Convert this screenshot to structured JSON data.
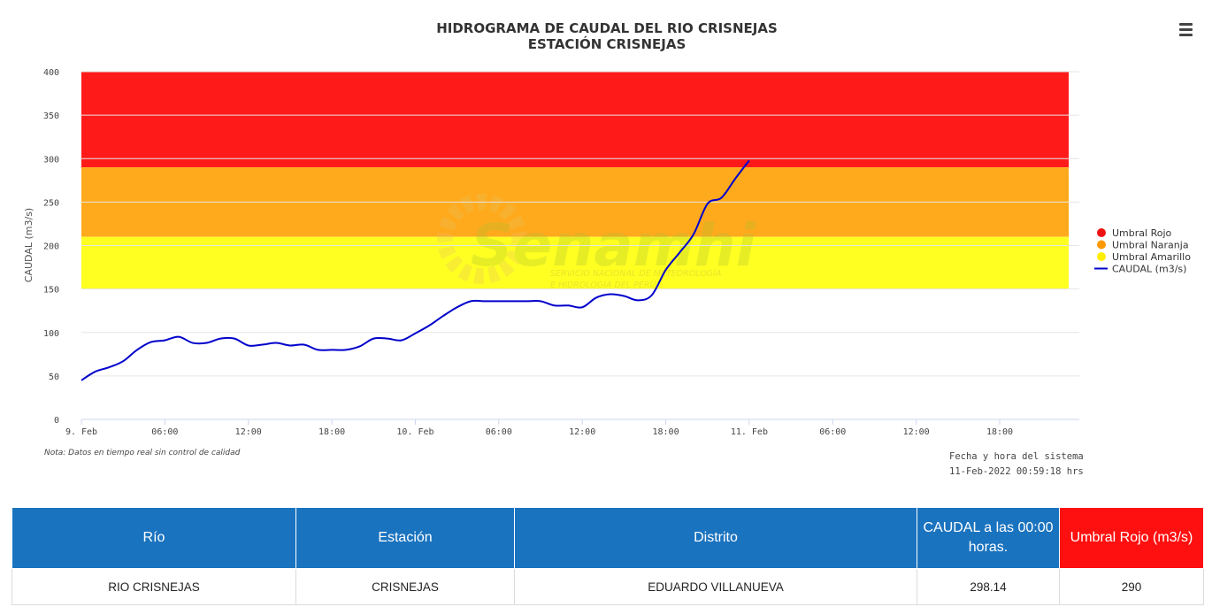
{
  "chart_data": {
    "type": "line",
    "title": "HIDROGRAMA DE CAUDAL DEL RIO CRISNEJAS",
    "subtitle": "ESTACIÓN CRISNEJAS",
    "ylabel": "CAUDAL (m3/s)",
    "ylim": [
      0,
      400
    ],
    "y_ticks": [
      0,
      50,
      100,
      150,
      200,
      250,
      300,
      350,
      400
    ],
    "x_range_hours": [
      0,
      66
    ],
    "x_ticks": [
      {
        "h": 0,
        "label": "9. Feb"
      },
      {
        "h": 6,
        "label": "06:00"
      },
      {
        "h": 12,
        "label": "12:00"
      },
      {
        "h": 18,
        "label": "18:00"
      },
      {
        "h": 24,
        "label": "10. Feb"
      },
      {
        "h": 30,
        "label": "06:00"
      },
      {
        "h": 36,
        "label": "12:00"
      },
      {
        "h": 42,
        "label": "18:00"
      },
      {
        "h": 48,
        "label": "11. Feb"
      },
      {
        "h": 54,
        "label": "06:00"
      },
      {
        "h": 60,
        "label": "12:00"
      },
      {
        "h": 66,
        "label": "18:00"
      }
    ],
    "bands": [
      {
        "name": "Umbral Rojo",
        "from": 290,
        "to": 400,
        "color": "#ff1a1a"
      },
      {
        "name": "Umbral Naranja",
        "from": 210,
        "to": 290,
        "color": "#ffaa1c"
      },
      {
        "name": "Umbral Amarillo",
        "from": 150,
        "to": 210,
        "color": "#ffff22"
      }
    ],
    "series": [
      {
        "name": "CAUDAL (m3/s)",
        "color": "#0000cc",
        "x": [
          0,
          1,
          2,
          3,
          4,
          5,
          6,
          7,
          8,
          9,
          10,
          11,
          12,
          13,
          14,
          15,
          16,
          17,
          18,
          19,
          20,
          21,
          22,
          23,
          24,
          25,
          26,
          27,
          28,
          29,
          30,
          31,
          32,
          33,
          34,
          35,
          36,
          37,
          38,
          39,
          40,
          41,
          42,
          43,
          44,
          45,
          46,
          47,
          48
        ],
        "y": [
          45,
          55,
          60,
          67,
          80,
          89,
          91,
          95,
          88,
          88,
          93,
          93,
          85,
          86,
          88,
          85,
          86,
          80,
          80,
          80,
          84,
          93,
          93,
          91,
          99,
          108,
          119,
          129,
          136,
          136,
          136,
          136,
          136,
          136,
          131,
          131,
          129,
          140,
          144,
          142,
          137,
          143,
          172,
          192,
          213,
          248,
          255,
          277,
          298
        ]
      }
    ],
    "legend": {
      "position": "right",
      "items": [
        "Umbral Rojo",
        "Umbral Naranja",
        "Umbral Amarillo",
        "CAUDAL (m3/s)"
      ]
    },
    "note": "Nota: Datos en tiempo real sin control de calidad",
    "system_time_label": "Fecha y hora del sistema",
    "system_time_value": "11-Feb-2022 00:59:18 hrs",
    "watermark": {
      "brand": "Senamhi",
      "tagline_1": "SERVICIO NACIONAL DE METEOROLOGÍA",
      "tagline_2": "E HIDROLOGÍA DEL PERÚ"
    }
  },
  "table": {
    "headers": [
      "Río",
      "Estación",
      "Distrito",
      "CAUDAL a las 00:00 horas.",
      "Umbral Rojo (m3/s)"
    ],
    "row": [
      "RIO CRISNEJAS",
      "CRISNEJAS",
      "EDUARDO VILLANUEVA",
      "298.14",
      "290"
    ]
  },
  "icons": {
    "menu": "hamburger-menu-icon"
  }
}
